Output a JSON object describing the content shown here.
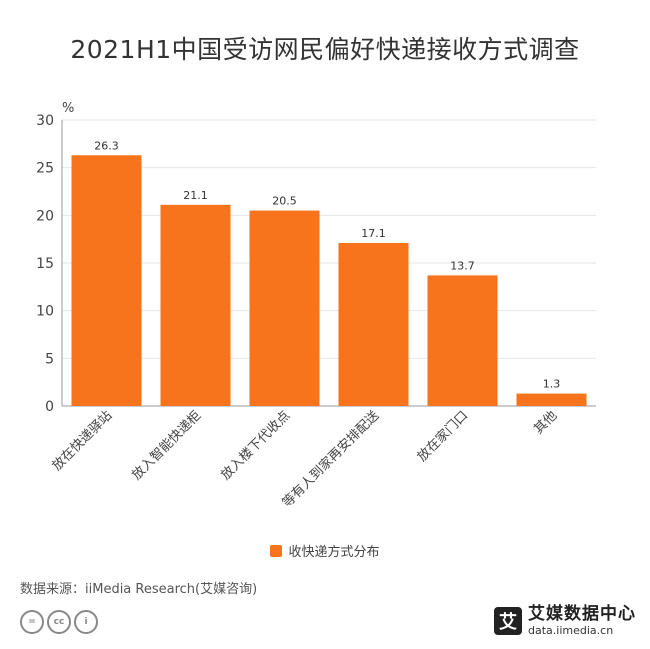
{
  "title": "2021H1中国受访网民偏好快递接收方式调查",
  "chart_data": {
    "type": "bar",
    "categories": [
      "放在快递驿站",
      "放入智能快递柜",
      "放入楼下代收点",
      "等有人到家再安排配送",
      "放在家门口",
      "其他"
    ],
    "series": [
      {
        "name": "收快递方式分布",
        "values": [
          26.3,
          21.1,
          20.5,
          17.1,
          13.7,
          1.3
        ]
      }
    ],
    "y_unit": "%",
    "ylim": [
      0,
      30
    ],
    "yticks": [
      0,
      5,
      10,
      15,
      20,
      25,
      30
    ],
    "grid": true,
    "legend_position": "bottom-center",
    "colors": {
      "bar": "#F7731C",
      "grid": "#E6E6E6",
      "axis": "#999999"
    }
  },
  "source": "数据来源：iiMedia Research(艾媒咨询)",
  "license_icons": [
    "=",
    "cc",
    "i"
  ],
  "brand": {
    "logo_char": "艾",
    "name": "艾媒数据中心",
    "url": "data.iimedia.cn"
  }
}
